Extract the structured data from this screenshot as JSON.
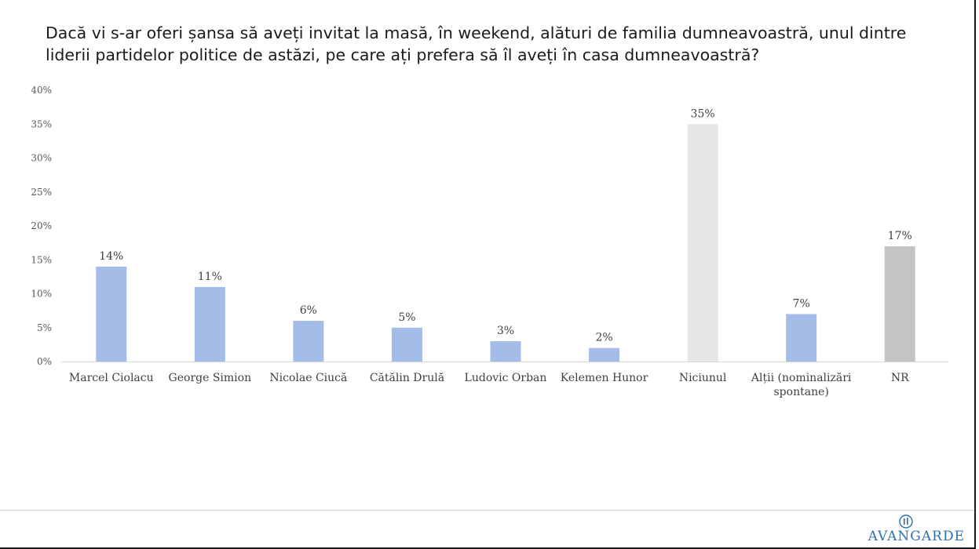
{
  "page": {
    "title": "Dacă vi s-ar oferi șansa să aveți invitat la masă, în weekend, alături de familia dumneavoastră, unul dintre liderii partidelor politice de astăzi, pe care ați prefera să îl aveți în casa dumneavoastră?"
  },
  "footer": {
    "logo_text": "AVANGARDE",
    "logo_icon": "avangarde-logo-icon"
  },
  "chart_data": {
    "type": "bar",
    "title": "",
    "xlabel": "",
    "ylabel": "",
    "ylim": [
      0,
      40
    ],
    "y_ticks": [
      "0%",
      "5%",
      "10%",
      "15%",
      "20%",
      "25%",
      "30%",
      "35%",
      "40%"
    ],
    "grid": false,
    "categories": [
      [
        "Marcel Ciolacu"
      ],
      [
        "George Simion"
      ],
      [
        "Nicolae Ciucă"
      ],
      [
        "Cătălin Drulă"
      ],
      [
        "Ludovic Orban"
      ],
      [
        "Kelemen Hunor"
      ],
      [
        "Niciunul"
      ],
      [
        "Alții (nominalizări",
        "spontane)"
      ],
      [
        "NR"
      ]
    ],
    "values": [
      14,
      11,
      6,
      5,
      3,
      2,
      35,
      7,
      17
    ],
    "data_labels": [
      "14%",
      "11%",
      "6%",
      "5%",
      "3%",
      "2%",
      "35%",
      "7%",
      "17%"
    ],
    "colors": [
      "#a4bde8",
      "#a4bde8",
      "#a4bde8",
      "#a4bde8",
      "#a4bde8",
      "#a4bde8",
      "#e6e6e6",
      "#a4bde8",
      "#c4c4c4"
    ]
  }
}
